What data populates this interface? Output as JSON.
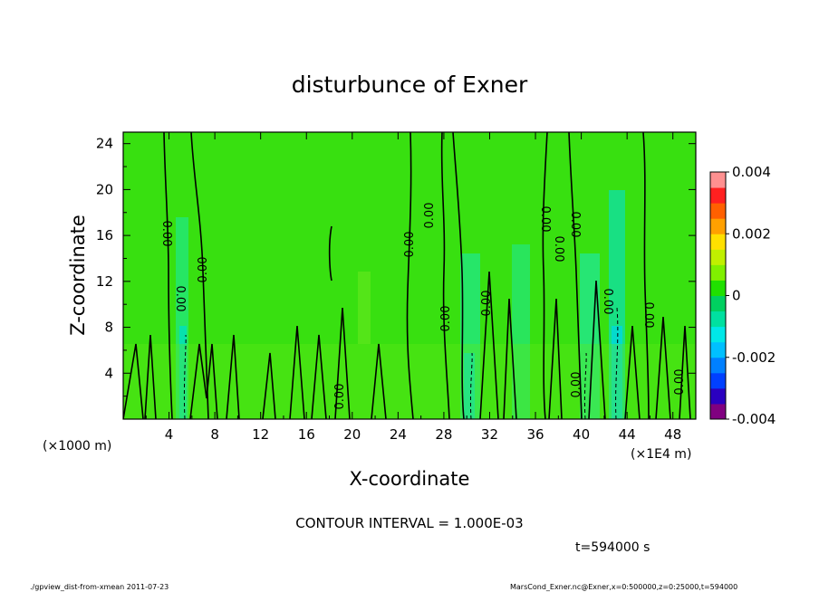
{
  "chart_data": {
    "type": "heatmap",
    "title": "disturbunce of Exner",
    "xlabel": "X-coordinate",
    "ylabel": "Z-coordinate",
    "x_unit_label": "(×1000 m)",
    "x_scale_label": "(×1E4 m)",
    "xlim": [
      0,
      50
    ],
    "ylim": [
      0,
      25
    ],
    "x_ticks": [
      "4",
      "8",
      "12",
      "16",
      "20",
      "24",
      "28",
      "32",
      "36",
      "40",
      "44",
      "48"
    ],
    "y_ticks": [
      "4",
      "8",
      "12",
      "16",
      "20",
      "24"
    ],
    "colorbar": {
      "ticks": [
        "0.004",
        "0.002",
        "0",
        "-0.002",
        "-0.004"
      ],
      "vmin": -0.004,
      "vmax": 0.004,
      "levels": 16,
      "colors": [
        "#800080",
        "#2a00c0",
        "#0040ff",
        "#0080ff",
        "#00c0ff",
        "#00e8e8",
        "#00e0a0",
        "#00d060",
        "#20e000",
        "#80f000",
        "#c0f000",
        "#ffe000",
        "#ffa000",
        "#ff6000",
        "#ff2020",
        "#ff9090"
      ]
    },
    "contour_interval_text": "CONTOUR INTERVAL = 1.000E-03",
    "contour_label": "0.00",
    "time_text": "t=594000 s",
    "grid": false,
    "field_estimate": {
      "background_value": 0.0,
      "note_regions": [
        {
          "x_center": 5.5,
          "value": -0.001
        },
        {
          "x_center": 29.5,
          "value": -0.0008
        },
        {
          "x_center": 35.5,
          "value": -0.0006
        },
        {
          "x_center": 41.5,
          "value": -0.0009
        },
        {
          "x_center": 43.5,
          "value": -0.0012
        }
      ]
    }
  },
  "footer": {
    "left": "./gpview_dist-from-xmean  2011-07-23",
    "right": "MarsCond_Exner.nc@Exner,x=0:500000,z=0:25000,t=594000"
  }
}
